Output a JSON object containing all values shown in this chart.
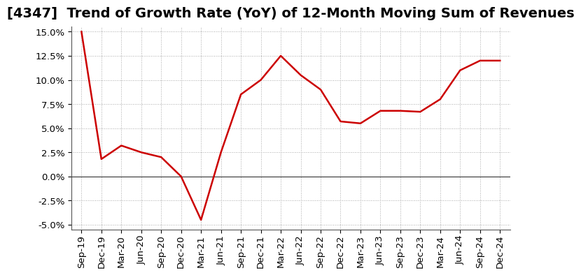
{
  "title": "[4347]  Trend of Growth Rate (YoY) of 12-Month Moving Sum of Revenues",
  "labels": [
    "Sep-19",
    "Dec-19",
    "Mar-20",
    "Jun-20",
    "Sep-20",
    "Dec-20",
    "Mar-21",
    "Jun-21",
    "Sep-21",
    "Dec-21",
    "Mar-22",
    "Jun-22",
    "Sep-22",
    "Dec-22",
    "Mar-23",
    "Jun-23",
    "Sep-23",
    "Dec-23",
    "Mar-24",
    "Jun-24",
    "Sep-24",
    "Dec-24"
  ],
  "values": [
    0.15,
    0.018,
    0.032,
    0.025,
    0.02,
    0.0,
    -0.045,
    0.025,
    0.085,
    0.1,
    0.125,
    0.105,
    0.09,
    0.057,
    0.055,
    0.068,
    0.068,
    0.067,
    0.08,
    0.11,
    0.12,
    0.12
  ],
  "line_color": "#cc0000",
  "background_color": "#ffffff",
  "plot_bg_color": "#ffffff",
  "grid_color": "#aaaaaa",
  "ylim": [
    -0.055,
    0.155
  ],
  "yticks": [
    -0.05,
    -0.025,
    0.0,
    0.025,
    0.05,
    0.075,
    0.1,
    0.125,
    0.15
  ],
  "title_fontsize": 14,
  "tick_fontsize": 9.5
}
